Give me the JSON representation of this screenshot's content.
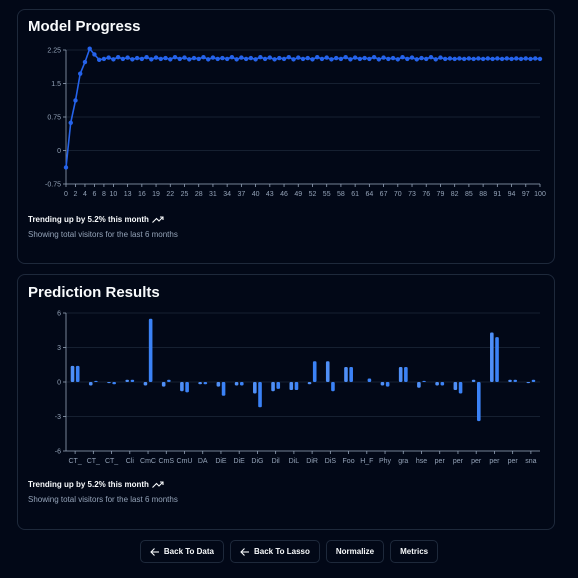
{
  "colors": {
    "accent": "#2563eb",
    "bar": "#4f8ff7",
    "background": "#020817",
    "border": "#1e293b",
    "muted": "#94a3b8"
  },
  "card1": {
    "title": "Model Progress",
    "trend_text": "Trending up by 5.2% this month",
    "trend_icon": "trending-up-icon",
    "subtitle": "Showing total visitors for the last 6 months"
  },
  "card2": {
    "title": "Prediction Results",
    "trend_text": "Trending up by 5.2% this month",
    "trend_icon": "trending-up-icon",
    "subtitle": "Showing total visitors for the last 6 months"
  },
  "buttons": {
    "back_to_data": "Back To Data",
    "back_to_lasso": "Back To Lasso",
    "normalize": "Normalize",
    "metrics": "Metrics"
  },
  "chart_data": [
    {
      "type": "line",
      "x": [
        0,
        1,
        2,
        3,
        4,
        5,
        6,
        7,
        8,
        9,
        10,
        11,
        12,
        13,
        14,
        15,
        16,
        17,
        18,
        19,
        20,
        21,
        22,
        23,
        24,
        25,
        26,
        27,
        28,
        29,
        30,
        31,
        32,
        33,
        34,
        35,
        36,
        37,
        38,
        39,
        40,
        41,
        42,
        43,
        44,
        45,
        46,
        47,
        48,
        49,
        50,
        51,
        52,
        53,
        54,
        55,
        56,
        57,
        58,
        59,
        60,
        61,
        62,
        63,
        64,
        65,
        66,
        67,
        68,
        69,
        70,
        71,
        72,
        73,
        74,
        75,
        76,
        77,
        78,
        79,
        80,
        81,
        82,
        83,
        84,
        85,
        86,
        87,
        88,
        89,
        90,
        91,
        92,
        93,
        94,
        95,
        96,
        97,
        98,
        99,
        100
      ],
      "y": [
        -0.38,
        0.62,
        1.12,
        1.72,
        1.98,
        2.28,
        2.15,
        2.03,
        2.05,
        2.08,
        2.04,
        2.09,
        2.05,
        2.08,
        2.04,
        2.07,
        2.05,
        2.09,
        2.04,
        2.08,
        2.05,
        2.07,
        2.04,
        2.09,
        2.05,
        2.08,
        2.04,
        2.07,
        2.05,
        2.09,
        2.04,
        2.08,
        2.05,
        2.07,
        2.05,
        2.09,
        2.04,
        2.08,
        2.05,
        2.07,
        2.04,
        2.09,
        2.05,
        2.08,
        2.04,
        2.07,
        2.05,
        2.09,
        2.04,
        2.08,
        2.05,
        2.07,
        2.04,
        2.09,
        2.05,
        2.08,
        2.04,
        2.07,
        2.05,
        2.09,
        2.04,
        2.08,
        2.05,
        2.07,
        2.05,
        2.09,
        2.04,
        2.08,
        2.05,
        2.07,
        2.04,
        2.09,
        2.05,
        2.08,
        2.04,
        2.07,
        2.05,
        2.09,
        2.04,
        2.08,
        2.05,
        2.06,
        2.05,
        2.06,
        2.05,
        2.06,
        2.05,
        2.06,
        2.05,
        2.06,
        2.05,
        2.06,
        2.05,
        2.06,
        2.05,
        2.06,
        2.05,
        2.06,
        2.05,
        2.06,
        2.05
      ],
      "x_ticks": [
        "0",
        "2",
        "4",
        "6",
        "8",
        "10",
        "13",
        "16",
        "19",
        "22",
        "25",
        "28",
        "31",
        "34",
        "37",
        "40",
        "43",
        "46",
        "49",
        "52",
        "55",
        "58",
        "61",
        "64",
        "67",
        "70",
        "73",
        "76",
        "79",
        "82",
        "85",
        "88",
        "91",
        "94",
        "97",
        "100"
      ],
      "y_ticks": [
        "2.25",
        "1.5",
        "0.75",
        "0",
        "-0.75"
      ],
      "ylim": [
        -0.75,
        2.25
      ],
      "grid": true
    },
    {
      "type": "bar",
      "categories": [
        "CT_",
        "CT_",
        "CT_",
        "Cli",
        "CmC",
        "CmS",
        "CmU",
        "DA",
        "DiE",
        "DiE",
        "DiG",
        "Dil",
        "DiL",
        "DiR",
        "DiS",
        "Foo",
        "H_F",
        "Phy",
        "gra",
        "hse",
        "per",
        "per",
        "per",
        "per",
        "per",
        "sna"
      ],
      "series": [
        {
          "values": [
            1.4,
            -0.3,
            -0.1,
            0.2,
            -0.3,
            -0.4,
            -0.8,
            -0.2,
            -0.4,
            -0.3,
            -1.0,
            -0.8,
            -0.7,
            -0.2,
            1.8,
            1.3,
            0,
            -0.3,
            1.3,
            -0.5,
            -0.3,
            -0.7,
            0.2,
            4.3,
            0.2,
            -0.1
          ]
        },
        {
          "values": [
            1.4,
            0.1,
            -0.2,
            0.2,
            5.5,
            0.2,
            -0.9,
            -0.2,
            -1.2,
            -0.3,
            -2.2,
            -0.6,
            -0.7,
            1.8,
            -0.8,
            1.3,
            0.3,
            -0.4,
            1.3,
            0.1,
            -0.3,
            -1.0,
            -3.4,
            3.9,
            0.2,
            0.2
          ]
        }
      ],
      "y_ticks": [
        "6",
        "3",
        "0",
        "-3",
        "-6"
      ],
      "ylim": [
        -6,
        6
      ],
      "grid": true
    }
  ]
}
